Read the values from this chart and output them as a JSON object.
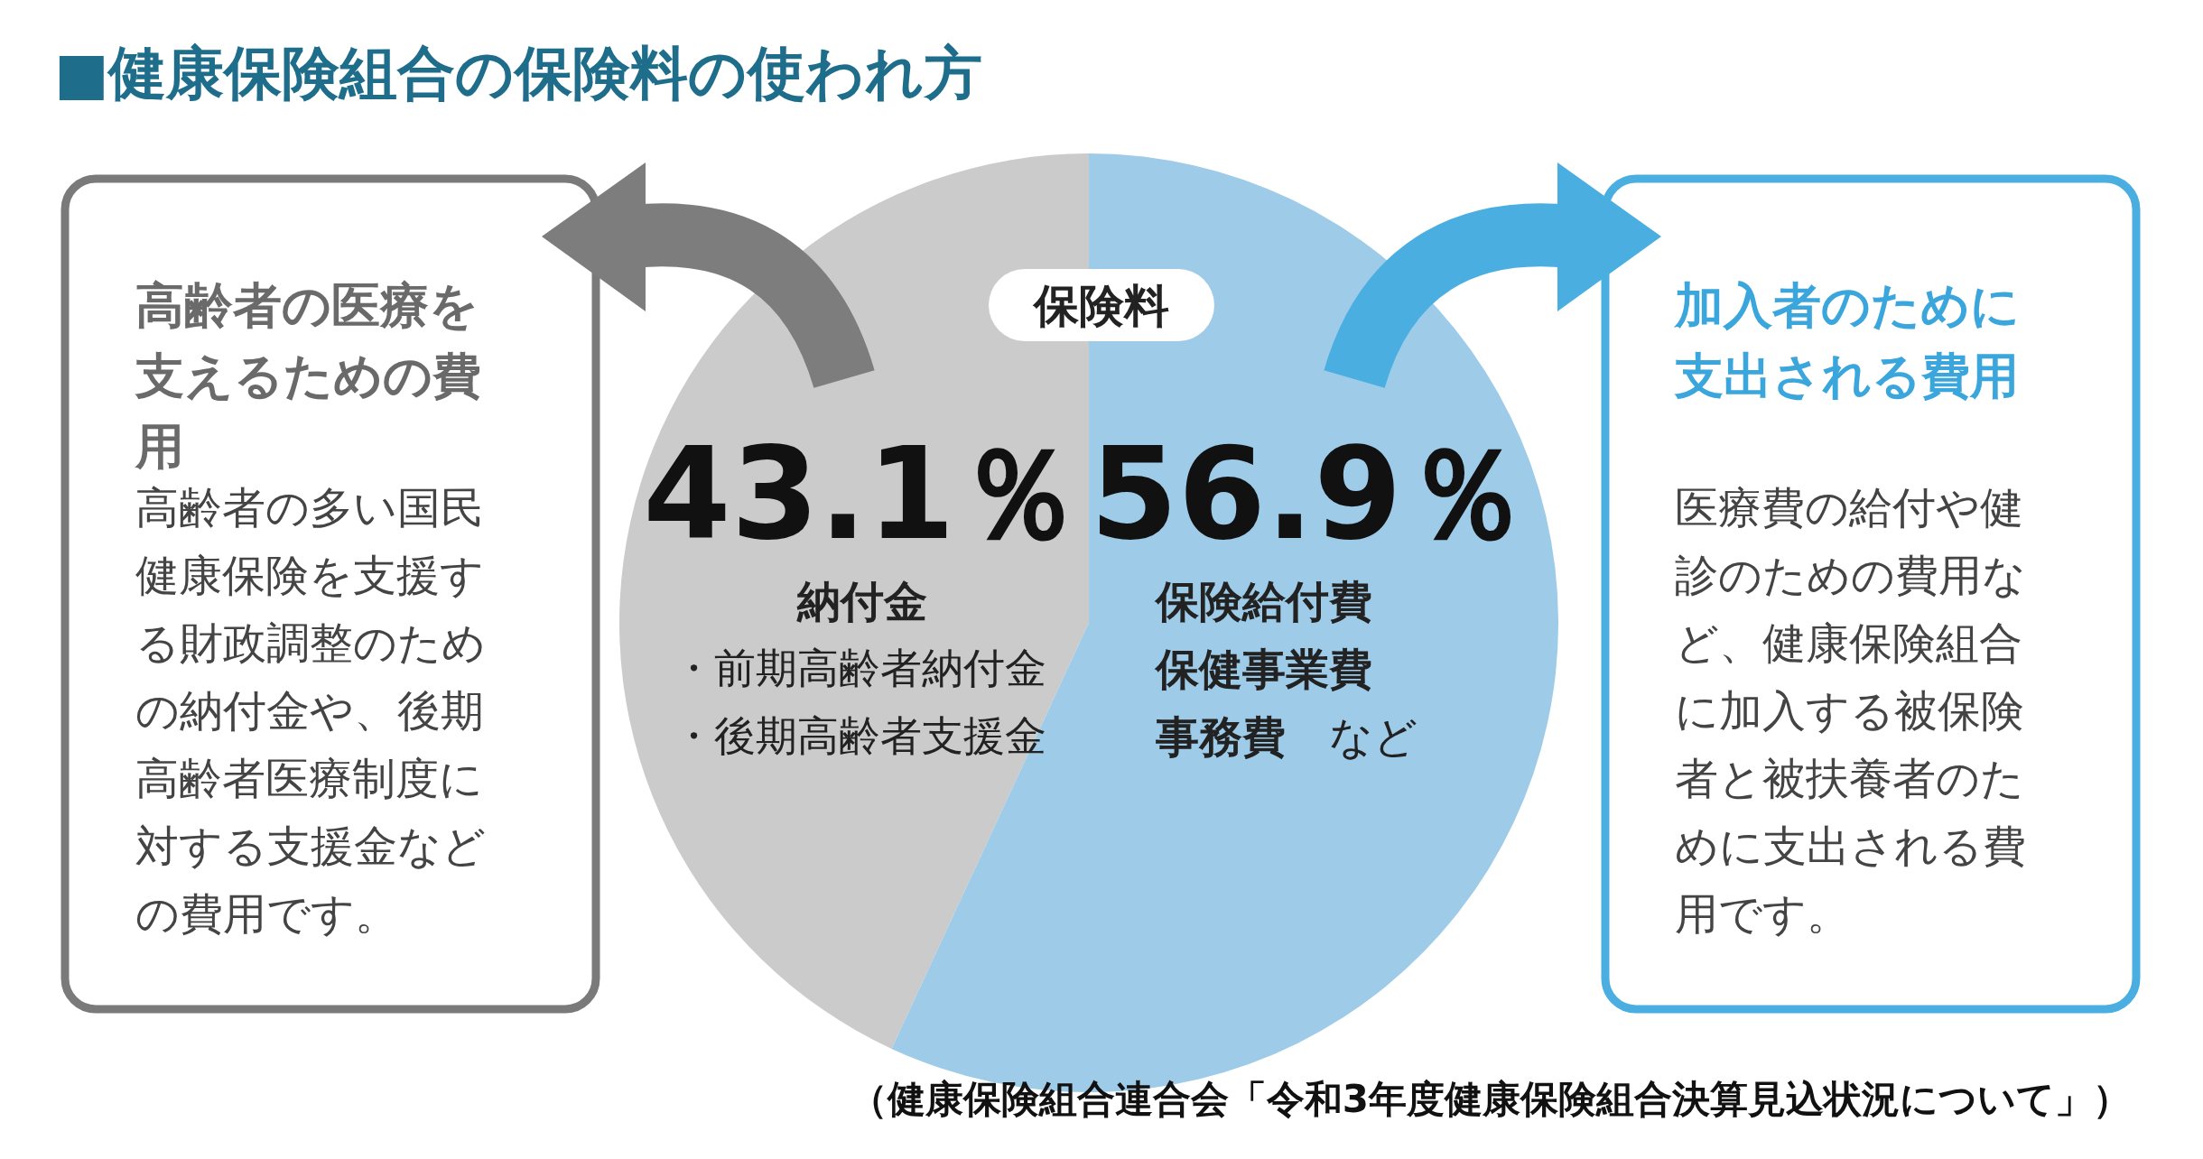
{
  "chart_data": {
    "type": "pie",
    "title": "■健康保険組合の保険料の使われ方",
    "categories": [
      "納付金",
      "保険給付費"
    ],
    "values": [
      43.1,
      56.9
    ],
    "colors": [
      "#cbcbcb",
      "#9dcbe8"
    ],
    "value_labels": [
      "43.1％",
      "56.9％"
    ],
    "annotations": [
      "保険料",
      "・前期高齢者納付金",
      "・後期高齢者支援金",
      "保健事業費",
      "**事務費**　など",
      "高齢者の医療を支えるための費用",
      "高齢者の多い国民健康保険を支援する財政調整のための納付金や、後期高齢者医療制度に対する支援金などの費用です。",
      "加入者のために支出される費用",
      "医療費の給付や健診のための費用など、健康保険組合に加入する被保険者と被扶養者のために支出される費用です。",
      "（健康保険組合連合会「令和3年度健康保険組合決算見込状況について」）"
    ]
  }
}
